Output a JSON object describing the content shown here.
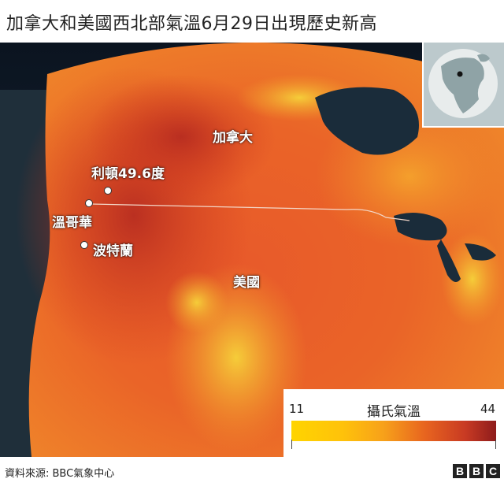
{
  "title": "加拿大和美國西北部氣溫6月29日出現歷史新高",
  "places": {
    "canada": "加拿大",
    "usa": "美國",
    "lytton": "利頓49.6度",
    "vancouver": "溫哥華",
    "portland": "波特蘭"
  },
  "legend": {
    "title": "攝氏氣溫",
    "min": "11",
    "max": "44",
    "colors": [
      "#ffd400",
      "#f7a11a",
      "#e8651f",
      "#c83a23",
      "#8e1c1c"
    ]
  },
  "footer": {
    "source": "資料來源: BBC氣象中心",
    "logo": [
      "B",
      "B",
      "C"
    ]
  },
  "icons": {
    "locator": "globe-locator-icon"
  }
}
